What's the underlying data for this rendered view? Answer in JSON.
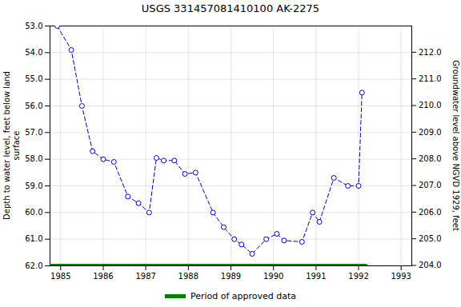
{
  "chart_data": {
    "type": "line",
    "title": "USGS 331457081410100 AK-2275",
    "ylabel": "Depth to water level, feet below land\n surface",
    "y2label": "Groundwater level above NGVD 1929, feet",
    "xlim": [
      1984.75,
      1993.25
    ],
    "xticks": [
      1985,
      1986,
      1987,
      1988,
      1989,
      1990,
      1991,
      1992,
      1993
    ],
    "ylim": [
      62.0,
      53.0
    ],
    "yticks": [
      {
        "value": 53,
        "label": "53.0"
      },
      {
        "value": 54,
        "label": "54.0"
      },
      {
        "value": 55,
        "label": "55.0"
      },
      {
        "value": 56,
        "label": "56.0"
      },
      {
        "value": 57,
        "label": "57.0"
      },
      {
        "value": 58,
        "label": "58.0"
      },
      {
        "value": 59,
        "label": "59.0"
      },
      {
        "value": 60,
        "label": "60.0"
      },
      {
        "value": 61,
        "label": "61.0"
      },
      {
        "value": 62,
        "label": "62.0"
      }
    ],
    "y2lim": [
      204.0,
      213.0
    ],
    "y2ticks": [
      {
        "value": 204,
        "label": "204.0"
      },
      {
        "value": 205,
        "label": "205.0"
      },
      {
        "value": 206,
        "label": "206.0"
      },
      {
        "value": 207,
        "label": "207.0"
      },
      {
        "value": 208,
        "label": "208.0"
      },
      {
        "value": 209,
        "label": "209.0"
      },
      {
        "value": 210,
        "label": "210.0"
      },
      {
        "value": 211,
        "label": "211.0"
      },
      {
        "value": 212,
        "label": "212.0"
      }
    ],
    "grid": true,
    "legend": "bottom",
    "series": [
      {
        "color": "#0000cc",
        "marker": "circle",
        "line_style": "dashed",
        "x": [
          1984.92,
          1985.25,
          1985.5,
          1985.75,
          1986.0,
          1986.25,
          1986.58,
          1986.83,
          1987.08,
          1987.25,
          1987.42,
          1987.67,
          1987.92,
          1988.17,
          1988.58,
          1988.83,
          1989.08,
          1989.25,
          1989.5,
          1989.83,
          1990.08,
          1990.25,
          1990.67,
          1990.92,
          1991.08,
          1991.42,
          1991.75,
          1992.0,
          1992.08
        ],
        "values": [
          53.0,
          53.9,
          56.0,
          57.7,
          58.0,
          58.1,
          59.4,
          59.65,
          60.0,
          57.95,
          58.05,
          58.05,
          58.55,
          58.5,
          60.0,
          60.55,
          61.0,
          61.2,
          61.55,
          61.0,
          60.8,
          61.05,
          61.1,
          60.0,
          60.35,
          58.7,
          59.0,
          59.0,
          55.5
        ]
      },
      {
        "name": "Period of approved data",
        "color": "#008000",
        "line_style": "solid",
        "x": [
          1984.75,
          1992.17
        ],
        "values": [
          62.0,
          62.0
        ]
      }
    ]
  }
}
